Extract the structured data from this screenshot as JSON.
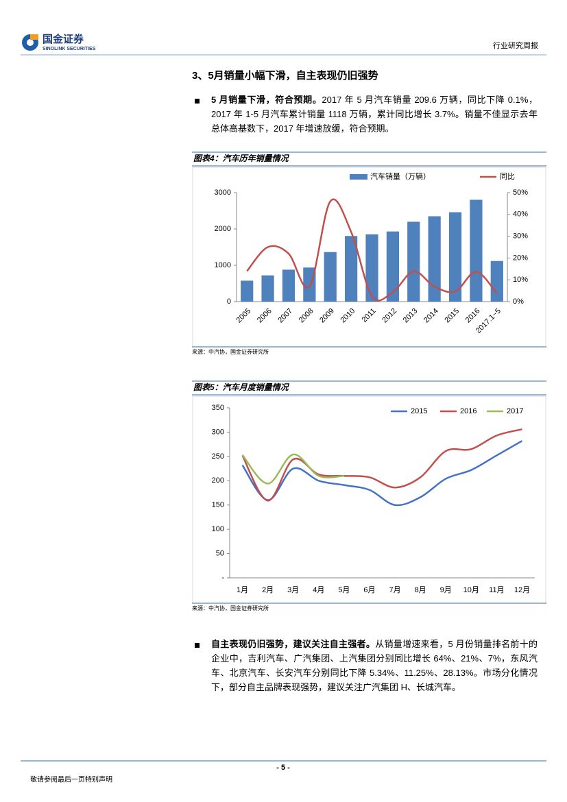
{
  "header": {
    "company": "国金证券",
    "company_en": "SINOLINK SECURITIES",
    "report_type": "行业研究周报"
  },
  "section_title": "3、5月销量小幅下滑，自主表现仍旧强势",
  "paragraphs": [
    {
      "lead": "5 月销量下滑，符合预期。",
      "text": "2017 年 5 月汽车销量 209.6 万辆，同比下降 0.1%，2017 年 1-5 月汽车累计销量 1118 万辆，累计同比增长 3.7%。销量不佳显示去年总体高基数下，2017 年增速放缓，符合预期。"
    },
    {
      "lead": "自主表现仍旧强势，建议关注自主强者。",
      "text": "从销量增速来看，5 月份销量排名前十的企业中，吉利汽车、广汽集团、上汽集团分别同比增长 64%、21%、7%，东风汽车、北京汽车、长安汽车分别同比下降 5.34%、11.25%、28.13%。市场分化情况下，部分自主品牌表现强势，建议关注广汽集团 H、长城汽车。"
    }
  ],
  "figures": [
    {
      "title": "图表4：汽车历年销量情况",
      "source": "来源：中汽协，国金证券研究所"
    },
    {
      "title": "图表5：汽车月度销量情况",
      "source": "来源：中汽协，国金证券研究所"
    }
  ],
  "chart_data": [
    {
      "type": "bar",
      "categories": [
        "2005",
        "2006",
        "2007",
        "2008",
        "2009",
        "2010",
        "2011",
        "2012",
        "2013",
        "2014",
        "2015",
        "2016",
        "2017.1~5"
      ],
      "series": [
        {
          "name": "汽车销量（万辆）",
          "color": "#4f81bd",
          "values": [
            576,
            722,
            879,
            938,
            1364,
            1806,
            1851,
            1931,
            2198,
            2349,
            2460,
            2803,
            1118
          ]
        },
        {
          "name": "同比",
          "color": "#c0504d",
          "type": "line",
          "axis": "y2",
          "values": [
            14,
            25,
            22,
            7,
            46,
            32,
            2.5,
            4.3,
            13.9,
            6.9,
            4.7,
            13.7,
            3.7
          ]
        }
      ],
      "ylim": [
        0,
        3000
      ],
      "yticks": [
        0,
        1000,
        2000,
        3000
      ],
      "y2lim": [
        0,
        50
      ],
      "y2ticks": [
        {
          "value": 0,
          "label": "0%"
        },
        {
          "value": 10,
          "label": "10%"
        },
        {
          "value": 20,
          "label": "20%"
        },
        {
          "value": 30,
          "label": "30%"
        },
        {
          "value": 40,
          "label": "40%"
        },
        {
          "value": 50,
          "label": "50%"
        }
      ]
    },
    {
      "type": "line",
      "categories": [
        "1月",
        "2月",
        "3月",
        "4月",
        "5月",
        "6月",
        "7月",
        "8月",
        "9月",
        "10月",
        "11月",
        "12月"
      ],
      "series": [
        {
          "name": "2015",
          "color": "#4472c4",
          "values": [
            232,
            160,
            225,
            200,
            191,
            181,
            150,
            166,
            204,
            222,
            252,
            282
          ]
        },
        {
          "name": "2016",
          "color": "#c0504d",
          "values": [
            252,
            159,
            244,
            213,
            210,
            207,
            186,
            207,
            261,
            265,
            293,
            306
          ]
        },
        {
          "name": "2017",
          "color": "#9bbb59",
          "values": [
            253,
            194,
            254,
            210,
            210,
            null,
            null,
            null,
            null,
            null,
            null,
            null
          ]
        }
      ],
      "ylim": [
        0,
        350
      ],
      "yticks": [
        {
          "value": 0,
          "label": "-"
        },
        50,
        100,
        150,
        200,
        250,
        300,
        350
      ]
    }
  ],
  "footer": {
    "page": "- 5 -",
    "disclaimer": "敬请参阅最后一页特别声明"
  }
}
